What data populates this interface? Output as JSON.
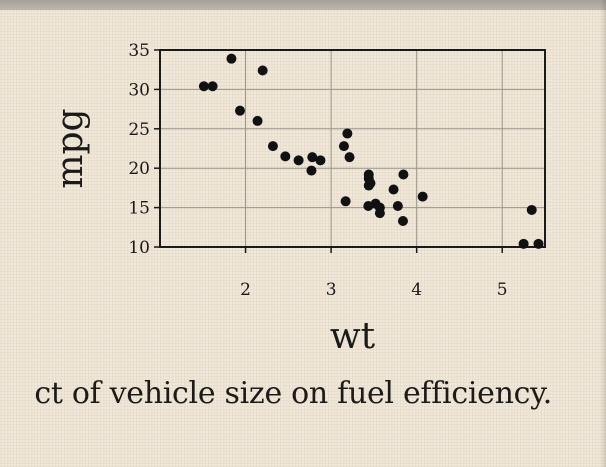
{
  "chart_data": {
    "type": "scatter",
    "title": "",
    "xlabel": "wt",
    "ylabel": "mpg",
    "xlim": [
      1.0,
      5.5
    ],
    "ylim": [
      10,
      35
    ],
    "x_ticks": [
      2,
      3,
      4,
      5
    ],
    "y_ticks": [
      10,
      15,
      20,
      25,
      30,
      35
    ],
    "grid": true,
    "series": [
      {
        "x": [
          2.62,
          2.875,
          2.32,
          3.215,
          3.44,
          3.46,
          3.57,
          3.19,
          3.15,
          3.44,
          3.44,
          4.07,
          3.73,
          3.78,
          5.25,
          5.424,
          5.345,
          2.2,
          1.615,
          1.835,
          2.465,
          3.52,
          3.435,
          3.84,
          3.845,
          1.935,
          2.14,
          1.513,
          3.17,
          2.77,
          3.57,
          2.78
        ],
        "y": [
          21.0,
          21.0,
          22.8,
          21.4,
          18.7,
          18.1,
          14.3,
          24.4,
          22.8,
          19.2,
          17.8,
          16.4,
          17.3,
          15.2,
          10.4,
          10.4,
          14.7,
          32.4,
          30.4,
          33.9,
          21.5,
          15.5,
          15.2,
          13.3,
          19.2,
          27.3,
          26.0,
          30.4,
          15.8,
          19.7,
          15.0,
          21.4
        ]
      }
    ]
  },
  "caption": {
    "text": "ct of vehicle size on fuel efficiency."
  }
}
